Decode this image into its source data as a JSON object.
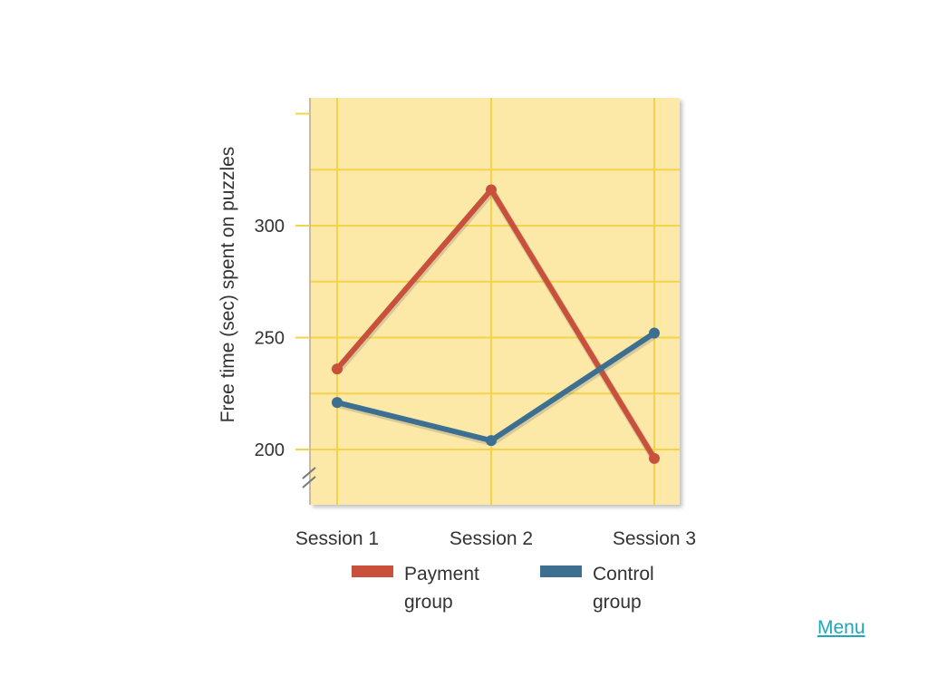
{
  "chart_data": {
    "type": "line",
    "categories": [
      "Session 1",
      "Session 2",
      "Session 3"
    ],
    "series": [
      {
        "name": "Payment\ngroup",
        "values": [
          236,
          316,
          196
        ],
        "color": "#c9513c"
      },
      {
        "name": "Control\ngroup",
        "values": [
          221,
          204,
          252
        ],
        "color": "#3d6f91"
      }
    ],
    "ylabel": "Free time (sec) spent on puzzles",
    "yticks": [
      200,
      250,
      300
    ],
    "ylim": [
      175,
      350
    ],
    "grid": true,
    "background": "#fce9a8",
    "gridColor": "#f5d24a",
    "axis_break": true,
    "legend_position": "bottom"
  },
  "nav": {
    "menu_label": "Menu",
    "link_color": "#1fa8b8"
  }
}
